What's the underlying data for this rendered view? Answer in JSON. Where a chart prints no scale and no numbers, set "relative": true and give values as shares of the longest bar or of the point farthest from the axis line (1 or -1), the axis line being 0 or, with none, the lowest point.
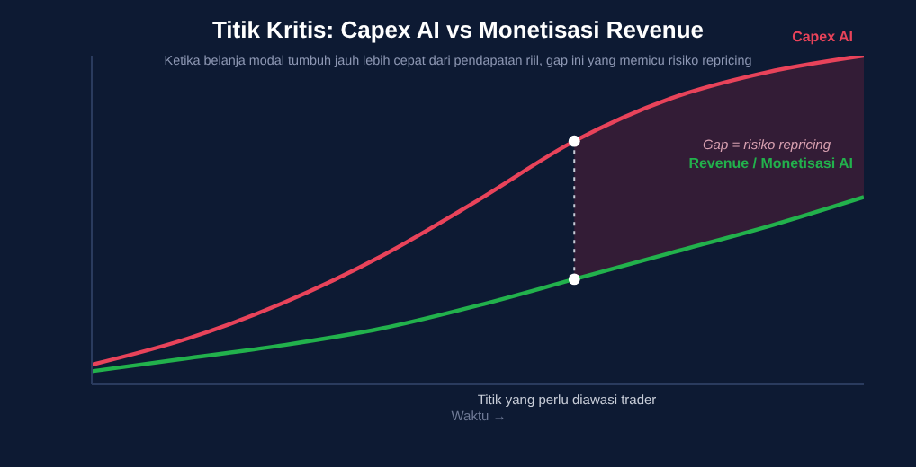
{
  "chart_data": {
    "type": "line",
    "title": "Titik Kritis: Capex AI vs Monetisasi Revenue",
    "subtitle": "Ketika belanja modal tumbuh jauh lebih cepat dari pendapatan riil, gap ini yang memicu risiko repricing",
    "xlabel": "Waktu →",
    "relative": true,
    "categories": [
      null,
      null,
      null,
      null,
      null,
      null,
      null,
      null,
      null
    ],
    "series": [
      {
        "name": "Capex AI",
        "color": "#e8435a",
        "values": [
          0.06,
          0.14,
          0.25,
          0.39,
          0.56,
          0.74,
          0.87,
          0.95,
          1.0
        ]
      },
      {
        "name": "Revenue / Monetisasi AI",
        "color": "#22b14c",
        "values": [
          0.04,
          0.08,
          0.12,
          0.17,
          0.24,
          0.32,
          0.4,
          0.48,
          0.57
        ]
      }
    ],
    "annotations": [
      "Gap = risiko repricing",
      "Titik yang perlu diawasi trader"
    ],
    "grid": false,
    "legend": false,
    "marker": "none",
    "line_style": "solid"
  }
}
